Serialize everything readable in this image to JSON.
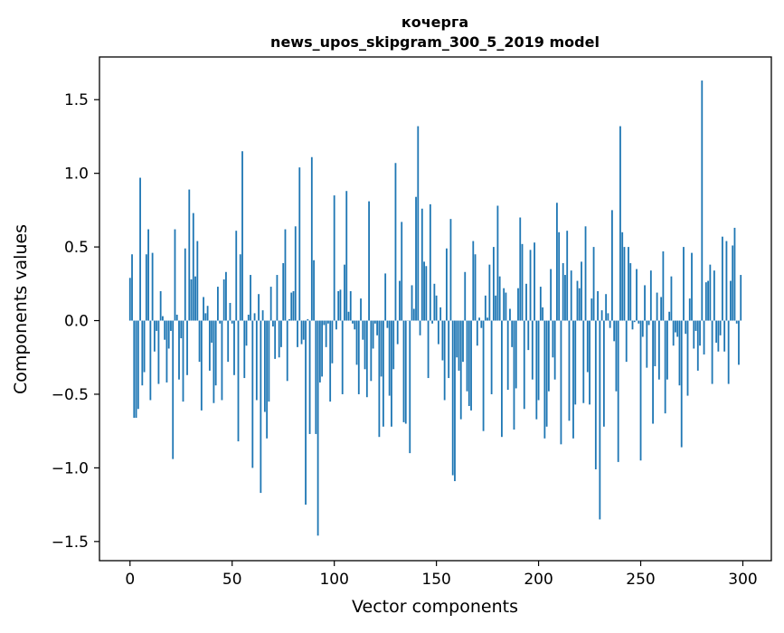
{
  "chart_data": {
    "type": "bar",
    "title": "кочерга",
    "subtitle": "news_upos_skipgram_300_5_2019 model",
    "xlabel": "Vector components",
    "ylabel": "Components values",
    "xlim": [
      -14.95,
      313.95
    ],
    "ylim": [
      -1.63,
      1.79
    ],
    "xticks": [
      0,
      50,
      100,
      150,
      200,
      250,
      300
    ],
    "yticks": [
      -1.5,
      -1.0,
      -0.5,
      0.0,
      0.5,
      1.0,
      1.5
    ],
    "xtick_labels": [
      "0",
      "50",
      "100",
      "150",
      "200",
      "250",
      "300"
    ],
    "ytick_labels": [
      "−1.5",
      "−1.0",
      "−0.5",
      "0.0",
      "0.5",
      "1.0",
      "1.5"
    ],
    "bar_color": "#1f77b4",
    "grid": false,
    "x": [
      0,
      1,
      2,
      3,
      4,
      5,
      6,
      7,
      8,
      9,
      10,
      11,
      12,
      13,
      14,
      15,
      16,
      17,
      18,
      19,
      20,
      21,
      22,
      23,
      24,
      25,
      26,
      27,
      28,
      29,
      30,
      31,
      32,
      33,
      34,
      35,
      36,
      37,
      38,
      39,
      40,
      41,
      42,
      43,
      44,
      45,
      46,
      47,
      48,
      49,
      50,
      51,
      52,
      53,
      54,
      55,
      56,
      57,
      58,
      59,
      60,
      61,
      62,
      63,
      64,
      65,
      66,
      67,
      68,
      69,
      70,
      71,
      72,
      73,
      74,
      75,
      76,
      77,
      78,
      79,
      80,
      81,
      82,
      83,
      84,
      85,
      86,
      87,
      88,
      89,
      90,
      91,
      92,
      93,
      94,
      95,
      96,
      97,
      98,
      99,
      100,
      101,
      102,
      103,
      104,
      105,
      106,
      107,
      108,
      109,
      110,
      111,
      112,
      113,
      114,
      115,
      116,
      117,
      118,
      119,
      120,
      121,
      122,
      123,
      124,
      125,
      126,
      127,
      128,
      129,
      130,
      131,
      132,
      133,
      134,
      135,
      136,
      137,
      138,
      139,
      140,
      141,
      142,
      143,
      144,
      145,
      146,
      147,
      148,
      149,
      150,
      151,
      152,
      153,
      154,
      155,
      156,
      157,
      158,
      159,
      160,
      161,
      162,
      163,
      164,
      165,
      166,
      167,
      168,
      169,
      170,
      171,
      172,
      173,
      174,
      175,
      176,
      177,
      178,
      179,
      180,
      181,
      182,
      183,
      184,
      185,
      186,
      187,
      188,
      189,
      190,
      191,
      192,
      193,
      194,
      195,
      196,
      197,
      198,
      199,
      200,
      201,
      202,
      203,
      204,
      205,
      206,
      207,
      208,
      209,
      210,
      211,
      212,
      213,
      214,
      215,
      216,
      217,
      218,
      219,
      220,
      221,
      222,
      223,
      224,
      225,
      226,
      227,
      228,
      229,
      230,
      231,
      232,
      233,
      234,
      235,
      236,
      237,
      238,
      239,
      240,
      241,
      242,
      243,
      244,
      245,
      246,
      247,
      248,
      249,
      250,
      251,
      252,
      253,
      254,
      255,
      256,
      257,
      258,
      259,
      260,
      261,
      262,
      263,
      264,
      265,
      266,
      267,
      268,
      269,
      270,
      271,
      272,
      273,
      274,
      275,
      276,
      277,
      278,
      279,
      280,
      281,
      282,
      283,
      284,
      285,
      286,
      287,
      288,
      289,
      290,
      291,
      292,
      293,
      294,
      295,
      296,
      297,
      298,
      299
    ],
    "values": [
      0.29,
      0.45,
      -0.66,
      -0.66,
      -0.6,
      0.97,
      -0.44,
      -0.35,
      0.45,
      0.62,
      -0.54,
      0.46,
      -0.21,
      -0.07,
      -0.43,
      0.2,
      0.03,
      -0.13,
      -0.42,
      -0.19,
      -0.07,
      -0.94,
      0.62,
      0.04,
      -0.4,
      -0.12,
      -0.55,
      0.49,
      -0.37,
      0.89,
      0.28,
      0.73,
      0.3,
      0.54,
      -0.28,
      -0.61,
      0.16,
      0.05,
      0.1,
      -0.34,
      -0.15,
      -0.56,
      -0.44,
      0.23,
      -0.02,
      -0.54,
      0.28,
      0.33,
      -0.28,
      0.12,
      -0.02,
      -0.37,
      0.61,
      -0.82,
      0.45,
      1.15,
      -0.39,
      -0.17,
      0.04,
      0.31,
      -1.0,
      0.05,
      -0.54,
      0.18,
      -1.17,
      0.07,
      -0.62,
      -0.8,
      -0.55,
      0.23,
      -0.04,
      -0.26,
      0.31,
      -0.25,
      -0.18,
      0.39,
      0.62,
      -0.41,
      0.01,
      0.19,
      0.2,
      0.64,
      -0.18,
      1.04,
      -0.16,
      -0.13,
      -1.25,
      0.01,
      -0.77,
      1.11,
      0.41,
      -0.77,
      -1.46,
      -0.42,
      -0.38,
      -0.03,
      -0.18,
      -0.02,
      -0.55,
      -0.29,
      0.85,
      -0.06,
      0.2,
      0.21,
      -0.5,
      0.38,
      0.88,
      0.06,
      0.2,
      -0.02,
      -0.06,
      -0.3,
      -0.5,
      0.15,
      -0.13,
      -0.33,
      -0.52,
      0.81,
      -0.41,
      -0.19,
      -0.02,
      -0.1,
      -0.79,
      -0.38,
      -0.72,
      0.32,
      -0.05,
      -0.51,
      -0.72,
      -0.33,
      1.07,
      -0.16,
      0.27,
      0.67,
      -0.69,
      -0.7,
      0.0,
      -0.9,
      0.24,
      0.08,
      0.84,
      1.32,
      -0.1,
      0.76,
      0.4,
      0.37,
      -0.39,
      0.79,
      -0.02,
      0.25,
      0.17,
      -0.16,
      0.09,
      -0.27,
      -0.54,
      0.49,
      -0.39,
      0.69,
      -1.05,
      -1.09,
      -0.25,
      -0.34,
      -0.67,
      -0.28,
      0.33,
      -0.48,
      -0.58,
      -0.61,
      0.54,
      0.45,
      -0.17,
      0.02,
      -0.05,
      -0.75,
      0.17,
      0.02,
      0.38,
      -0.5,
      0.5,
      0.17,
      0.78,
      0.3,
      -0.79,
      0.22,
      0.19,
      -0.47,
      0.08,
      -0.18,
      -0.74,
      -0.46,
      0.22,
      0.7,
      0.52,
      -0.6,
      0.25,
      -0.2,
      0.48,
      -0.4,
      0.53,
      -0.67,
      -0.54,
      0.23,
      0.09,
      -0.8,
      -0.72,
      -0.48,
      0.35,
      -0.25,
      -0.4,
      0.8,
      0.6,
      -0.84,
      0.39,
      0.31,
      0.61,
      -0.68,
      0.34,
      -0.8,
      -0.57,
      0.27,
      0.22,
      0.4,
      -0.56,
      0.64,
      -0.35,
      -0.57,
      0.15,
      0.5,
      -1.01,
      0.2,
      -1.35,
      0.07,
      -0.72,
      0.18,
      0.05,
      -0.05,
      0.75,
      -0.14,
      -0.48,
      -0.96,
      1.32,
      0.6,
      0.5,
      -0.28,
      0.5,
      0.39,
      -0.06,
      -0.01,
      0.35,
      -0.02,
      -0.95,
      -0.11,
      0.24,
      -0.32,
      -0.03,
      0.34,
      -0.7,
      -0.31,
      0.19,
      -0.4,
      0.16,
      0.47,
      -0.63,
      -0.4,
      0.06,
      0.3,
      -0.17,
      -0.08,
      -0.11,
      -0.44,
      -0.86,
      0.5,
      -0.09,
      -0.51,
      0.15,
      0.46,
      -0.19,
      -0.07,
      -0.34,
      -0.17,
      1.63,
      -0.23,
      0.26,
      0.27,
      0.38,
      -0.43,
      0.34,
      -0.15,
      -0.21,
      -0.1,
      0.57,
      -0.21,
      0.54,
      -0.43,
      0.27,
      0.51,
      0.63,
      -0.02,
      -0.3,
      0.31
    ]
  }
}
